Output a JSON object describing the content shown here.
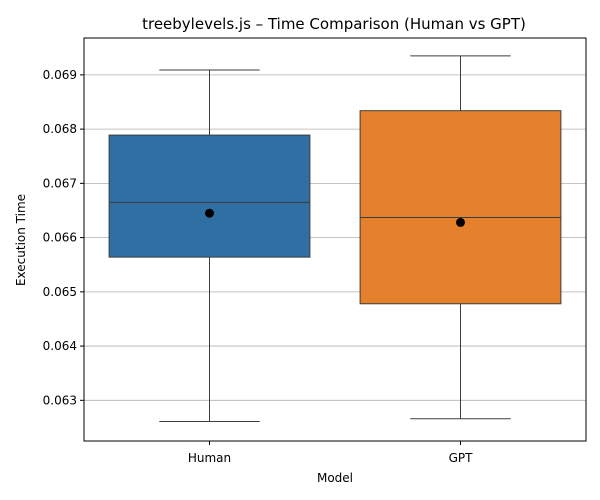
{
  "chart_data": {
    "type": "box",
    "title": "treebylevels.js – Time Comparison (Human vs GPT)",
    "xlabel": "Model",
    "ylabel": "Execution Time",
    "ylim": [
      0.06225,
      0.06968
    ],
    "yticks": [
      "0.063",
      "0.064",
      "0.065",
      "0.066",
      "0.067",
      "0.068",
      "0.069"
    ],
    "grid": "horizontal",
    "categories": [
      "Human",
      "GPT"
    ],
    "series": [
      {
        "category": "Human",
        "color": "#2f6fa3",
        "whisker_low": 0.06261,
        "q1": 0.06564,
        "median": 0.06665,
        "q3": 0.06789,
        "whisker_high": 0.06909,
        "mean": 0.06645
      },
      {
        "category": "GPT",
        "color": "#e5812c",
        "whisker_low": 0.06266,
        "q1": 0.06478,
        "median": 0.06637,
        "q3": 0.06834,
        "whisker_high": 0.06935,
        "mean": 0.06628
      }
    ]
  }
}
